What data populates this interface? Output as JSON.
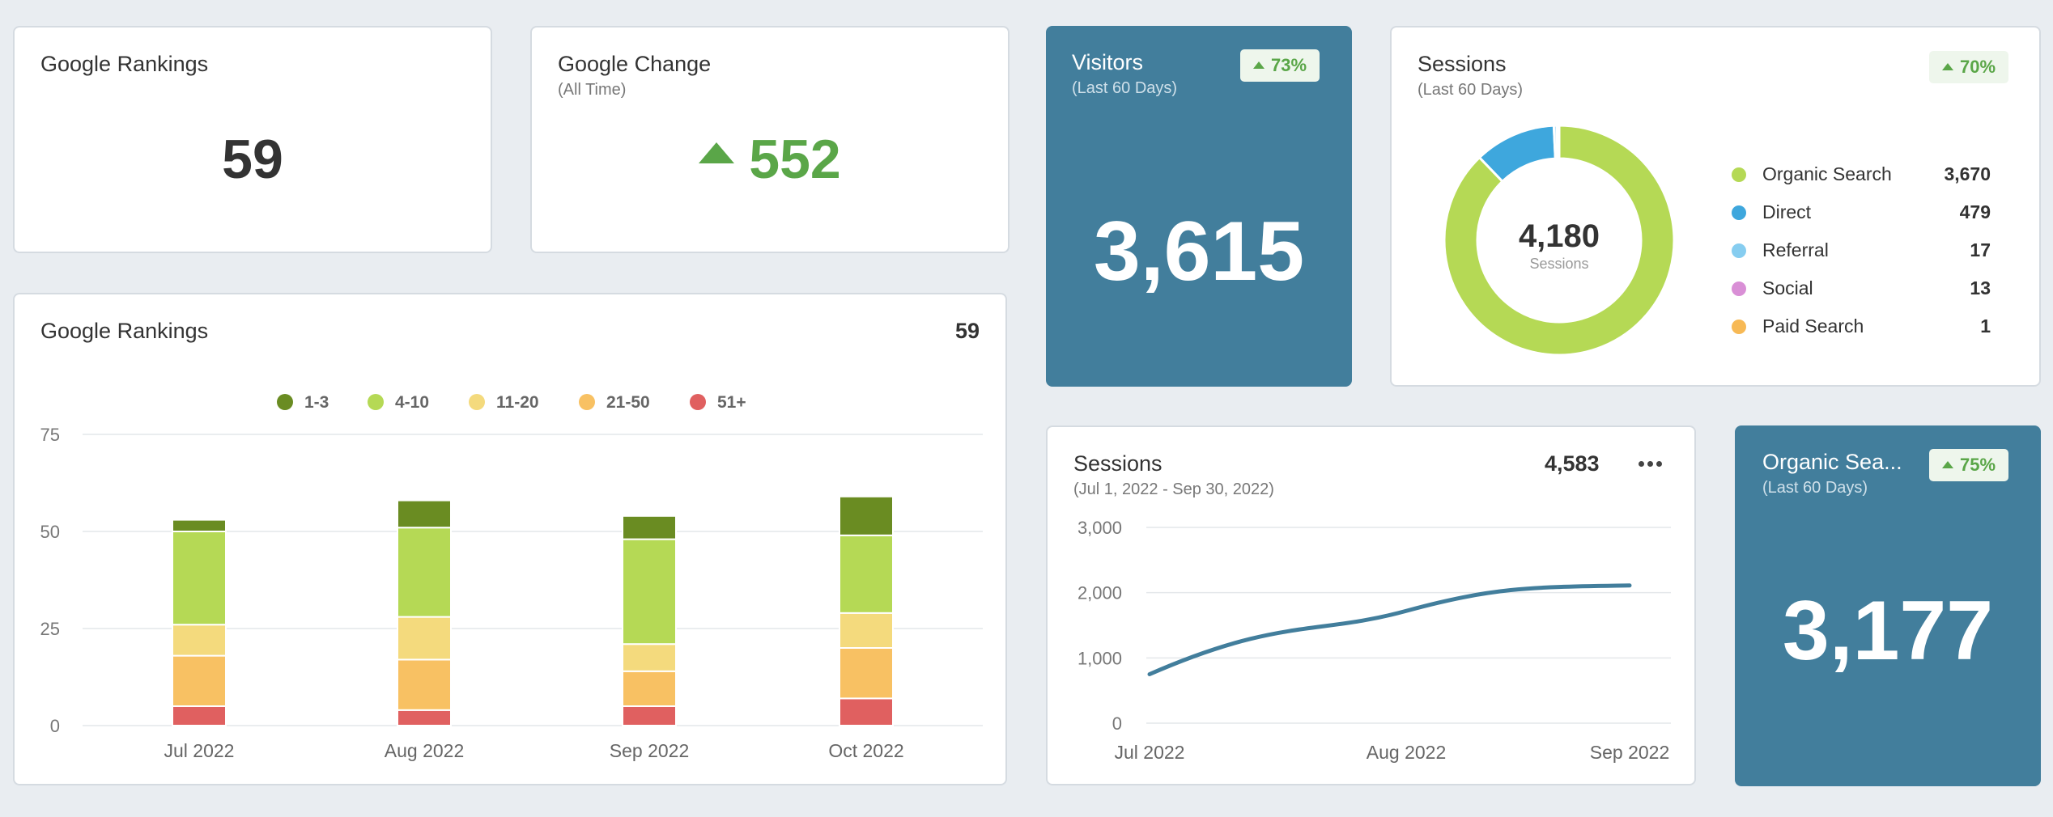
{
  "rankings_card": {
    "title": "Google Rankings",
    "value": "59"
  },
  "change_card": {
    "title": "Google Change",
    "subtitle": "(All Time)",
    "value": "552"
  },
  "visitors_card": {
    "title": "Visitors",
    "subtitle": "(Last 60 Days)",
    "badge": "73%",
    "value": "3,615"
  },
  "sessions_donut_card": {
    "title": "Sessions",
    "subtitle": "(Last 60 Days)",
    "badge": "70%",
    "center_value": "4,180",
    "center_label": "Sessions",
    "legend": [
      {
        "label": "Organic Search",
        "value": "3,670",
        "color": "#b5d955"
      },
      {
        "label": "Direct",
        "value": "479",
        "color": "#3ea7dd"
      },
      {
        "label": "Referral",
        "value": "17",
        "color": "#86cdf0"
      },
      {
        "label": "Social",
        "value": "13",
        "color": "#d98fd6"
      },
      {
        "label": "Paid Search",
        "value": "1",
        "color": "#f7b955"
      }
    ]
  },
  "rankings_chart_card": {
    "title": "Google Rankings",
    "header_value": "59",
    "legend": [
      {
        "label": "1-3",
        "color": "#6a8c22"
      },
      {
        "label": "4-10",
        "color": "#b5d955"
      },
      {
        "label": "11-20",
        "color": "#f4da7d"
      },
      {
        "label": "21-50",
        "color": "#f8c163"
      },
      {
        "label": "51+",
        "color": "#e06060"
      }
    ]
  },
  "sessions_line_card": {
    "title": "Sessions",
    "subtitle": "(Jul 1, 2022 - Sep 30, 2022)",
    "header_value": "4,583",
    "menu_icon": "more-icon"
  },
  "organic_card": {
    "title": "Organic Sea...",
    "subtitle": "(Last 60 Days)",
    "badge": "75%",
    "value": "3,177"
  },
  "chart_data": [
    {
      "type": "bar",
      "stacked": true,
      "title": "Google Rankings",
      "categories": [
        "Jul 2022",
        "Aug 2022",
        "Sep 2022",
        "Oct 2022"
      ],
      "series": [
        {
          "name": "51+",
          "values": [
            5,
            4,
            5,
            7
          ],
          "color": "#e06060"
        },
        {
          "name": "21-50",
          "values": [
            13,
            13,
            9,
            13
          ],
          "color": "#f8c163"
        },
        {
          "name": "11-20",
          "values": [
            8,
            11,
            7,
            9
          ],
          "color": "#f4da7d"
        },
        {
          "name": "4-10",
          "values": [
            24,
            23,
            27,
            20
          ],
          "color": "#b5d955"
        },
        {
          "name": "1-3",
          "values": [
            3,
            7,
            6,
            10
          ],
          "color": "#6a8c22"
        }
      ],
      "ylim": [
        0,
        75
      ],
      "yticks": [
        "0",
        "25",
        "50",
        "75"
      ],
      "grid": true,
      "legend_position": "top"
    },
    {
      "type": "line",
      "title": "Sessions",
      "x": [
        "Jul 2022",
        "Aug 2022",
        "Sep 2022"
      ],
      "series": [
        {
          "values": [
            750,
            1720,
            2110
          ],
          "color": "#427e9c"
        }
      ],
      "ylim": [
        0,
        3000
      ],
      "yticks": [
        "0",
        "1,000",
        "2,000",
        "3,000"
      ],
      "grid": true
    },
    {
      "type": "pie",
      "donut": true,
      "title": "Sessions",
      "categories": [
        "Organic Search",
        "Direct",
        "Referral",
        "Social",
        "Paid Search"
      ],
      "values": [
        3670,
        479,
        17,
        13,
        1
      ]
    }
  ]
}
